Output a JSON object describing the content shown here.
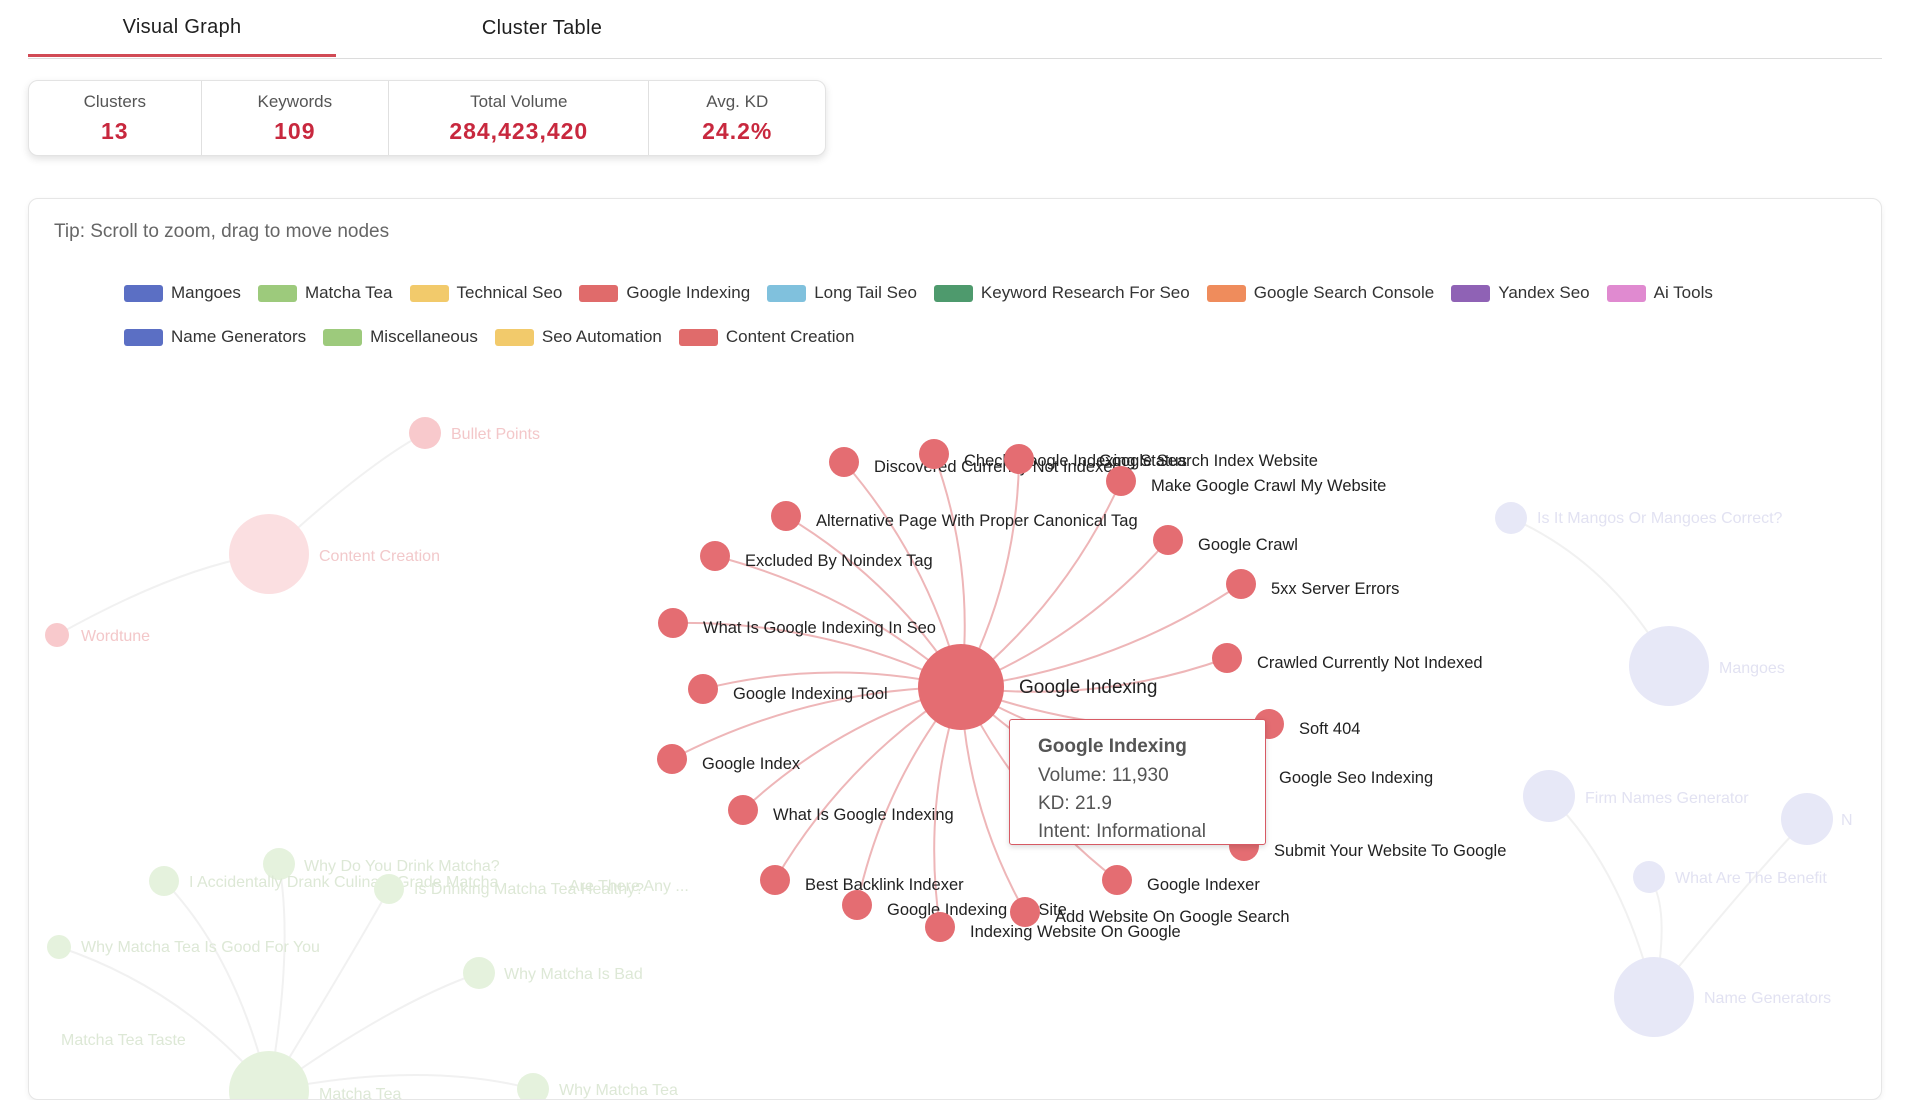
{
  "tabs": [
    {
      "label": "Visual Graph",
      "active": true
    },
    {
      "label": "Cluster Table",
      "active": false
    }
  ],
  "stats": [
    {
      "label": "Clusters",
      "value": "13"
    },
    {
      "label": "Keywords",
      "value": "109"
    },
    {
      "label": "Total Volume",
      "value": "284,423,420"
    },
    {
      "label": "Avg. KD",
      "value": "24.2%"
    }
  ],
  "tip": "Tip: Scroll to zoom, drag to move nodes",
  "legend": [
    {
      "label": "Mangoes",
      "color": "#5b6fc4"
    },
    {
      "label": "Matcha Tea",
      "color": "#9dca7c"
    },
    {
      "label": "Technical Seo",
      "color": "#f2ca6b"
    },
    {
      "label": "Google Indexing",
      "color": "#e06b6b"
    },
    {
      "label": "Long Tail Seo",
      "color": "#80c1dd"
    },
    {
      "label": "Keyword Research For Seo",
      "color": "#4e9a6d"
    },
    {
      "label": "Google Search Console",
      "color": "#ef8c5c"
    },
    {
      "label": "Yandex Seo",
      "color": "#8f62b5"
    },
    {
      "label": "Ai Tools",
      "color": "#e08ad0"
    },
    {
      "label": "Name Generators",
      "color": "#5b6fc4"
    },
    {
      "label": "Miscellaneous",
      "color": "#9dca7c"
    },
    {
      "label": "Seo Automation",
      "color": "#f2ca6b"
    },
    {
      "label": "Content Creation",
      "color": "#e06b6b"
    }
  ],
  "graph": {
    "focus_color": "#e46d72",
    "center": {
      "label": "Google Indexing"
    },
    "keywords": [
      "Discovered Currently Not Indexed",
      "Check Google Indexing Status",
      "Google Search Index Website",
      "Make Google Crawl My Website",
      "Alternative Page With Proper Canonical Tag",
      "Google Crawl",
      "Excluded By Noindex Tag",
      "5xx Server Errors",
      "What Is Google Indexing In Seo",
      "Crawled Currently Not Indexed",
      "Google Indexing Tool",
      "Soft 404",
      "Google Index",
      "Google Seo Indexing",
      "What Is Google Indexing",
      "Submit Your Website To Google",
      "Best Backlink Indexer",
      "Google Indexer",
      "Google Indexing My Site",
      "Add Website On Google Search",
      "Indexing Website On Google"
    ],
    "faded": [
      "Bullet Points",
      "Content Creation",
      "Wordtune",
      "Why Do You Drink Matcha?",
      "I Accidentally Drank Culinary Grade Matcha",
      "Are There Any ...",
      "Is Drinking Matcha Tea Healthy?",
      "Why Matcha Tea Is Good For You",
      "Why Matcha Is Bad",
      "Matcha Tea Taste",
      "Matcha Tea",
      "Why Matcha Tea",
      "Is It Mangos Or Mangoes Correct?",
      "Mangoes",
      "Firm Names Generator",
      "N",
      "What Are The Benefit",
      "Name Generators"
    ]
  },
  "tooltip": {
    "title": "Google Indexing",
    "volume": "Volume: 11,930",
    "kd": "KD: 21.9",
    "intent": "Intent: Informational"
  }
}
